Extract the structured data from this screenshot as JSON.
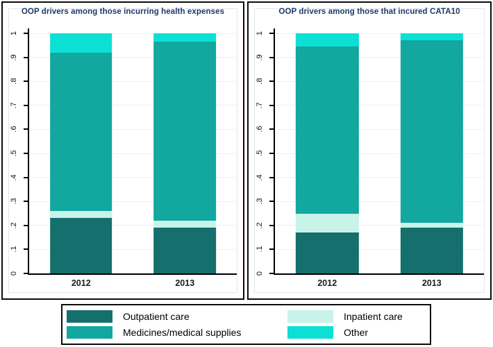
{
  "figure": {
    "background": "#ffffff"
  },
  "colors": {
    "outpatient": "#156f6d",
    "medicines": "#12a79f",
    "inpatient": "#c7f3e8",
    "other": "#0ce0d4",
    "title_text": "#1f3864",
    "gridline": "#e9f1f4",
    "axis": "#000000",
    "panel_border": "#0b0b0b"
  },
  "chart_data": [
    {
      "type": "bar",
      "stacked": true,
      "title": "OOP drivers among those incurring health expenses",
      "categories": [
        "2012",
        "2013"
      ],
      "stack_order": "bottom-to-top",
      "series": [
        {
          "name": "Outpatient care",
          "color": "#156f6d",
          "values": [
            0.23,
            0.19
          ]
        },
        {
          "name": "Inpatient care",
          "color": "#c7f3e8",
          "values": [
            0.03,
            0.03
          ]
        },
        {
          "name": "Medicines/medical supplies",
          "color": "#12a79f",
          "values": [
            0.66,
            0.745
          ]
        },
        {
          "name": "Other",
          "color": "#0ce0d4",
          "values": [
            0.08,
            0.035
          ]
        }
      ],
      "ylim": [
        0,
        1
      ],
      "ytick_labels": [
        "0",
        ".1",
        ".2",
        ".3",
        ".4",
        ".5",
        ".6",
        ".7",
        ".8",
        ".9",
        "1"
      ],
      "grid": true,
      "legend_position": "shared-bottom"
    },
    {
      "type": "bar",
      "stacked": true,
      "title": "OOP drivers among those that incured CATA10",
      "categories": [
        "2012",
        "2013"
      ],
      "stack_order": "bottom-to-top",
      "series": [
        {
          "name": "Outpatient care",
          "color": "#156f6d",
          "values": [
            0.17,
            0.19
          ]
        },
        {
          "name": "Inpatient care",
          "color": "#c7f3e8",
          "values": [
            0.08,
            0.02
          ]
        },
        {
          "name": "Medicines/medical supplies",
          "color": "#12a79f",
          "values": [
            0.695,
            0.76
          ]
        },
        {
          "name": "Other",
          "color": "#0ce0d4",
          "values": [
            0.055,
            0.03
          ]
        }
      ],
      "ylim": [
        0,
        1
      ],
      "ytick_labels": [
        "0",
        ".1",
        ".2",
        ".3",
        ".4",
        ".5",
        ".6",
        ".7",
        ".8",
        ".9",
        "1"
      ],
      "grid": true,
      "legend_position": "shared-bottom"
    }
  ],
  "legend": {
    "items": [
      {
        "label": "Outpatient care",
        "color": "#156f6d"
      },
      {
        "label": "Inpatient care",
        "color": "#c7f3e8"
      },
      {
        "label": "Medicines/medical supplies",
        "color": "#12a79f"
      },
      {
        "label": "Other",
        "color": "#0ce0d4"
      }
    ]
  }
}
